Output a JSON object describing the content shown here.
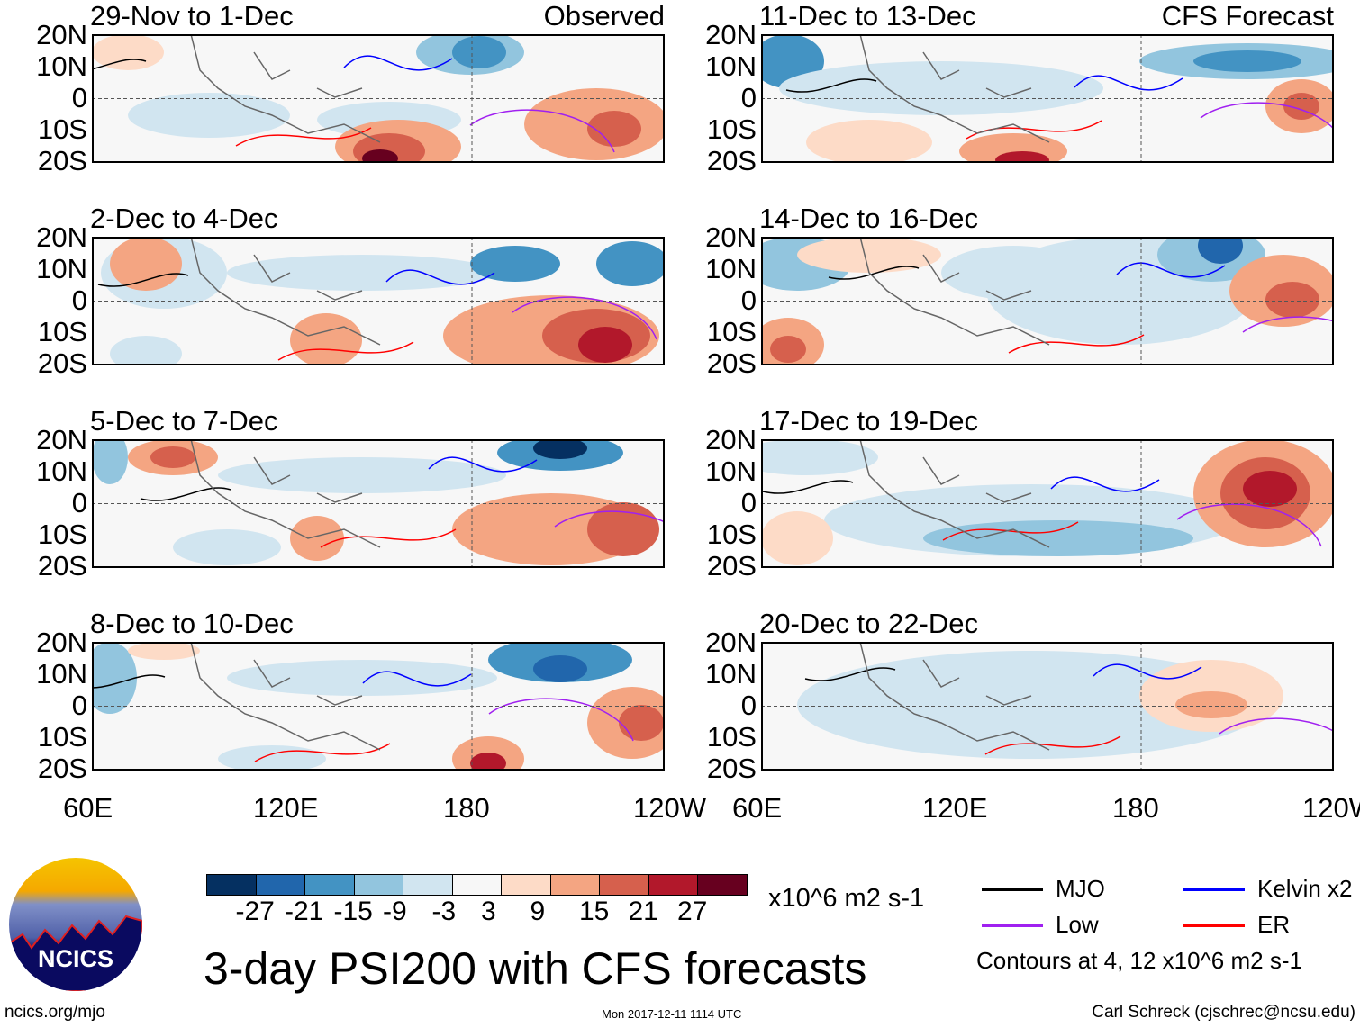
{
  "panels": {
    "left": [
      {
        "title": "29-Nov to 1-Dec",
        "tag": "Observed"
      },
      {
        "title": "2-Dec to 4-Dec"
      },
      {
        "title": "5-Dec to 7-Dec"
      },
      {
        "title": "8-Dec to 10-Dec"
      }
    ],
    "right": [
      {
        "title": "11-Dec to 13-Dec",
        "tag": "CFS Forecast"
      },
      {
        "title": "14-Dec to 16-Dec"
      },
      {
        "title": "17-Dec to 19-Dec"
      },
      {
        "title": "20-Dec to 22-Dec"
      }
    ]
  },
  "lat_labels": [
    "20N",
    "10N",
    "0",
    "10S",
    "20S"
  ],
  "lon_labels": [
    "60E",
    "120E",
    "180",
    "120W"
  ],
  "colorbar": {
    "colors": [
      "#053061",
      "#2166ac",
      "#4393c3",
      "#92c5de",
      "#d1e5f0",
      "#f7f7f7",
      "#fddbc7",
      "#f4a582",
      "#d6604d",
      "#b2182b",
      "#67001f"
    ],
    "labels": [
      "-27",
      "-21",
      "-15",
      "-9",
      "-3",
      "3",
      "9",
      "15",
      "21",
      "27"
    ],
    "units": "x10^6 m2 s-1"
  },
  "legend": {
    "items": [
      {
        "label": "MJO",
        "color": "#000000"
      },
      {
        "label": "Kelvin x2",
        "color": "#0000ff"
      },
      {
        "label": "Low",
        "color": "#a020f0"
      },
      {
        "label": "ER",
        "color": "#ff0000"
      }
    ],
    "note": "Contours at 4, 12 x10^6 m2 s-1"
  },
  "title": "3-day PSI200 with CFS forecasts",
  "logo_text": "NCICS",
  "footer": {
    "url": "ncics.org/mjo",
    "timestamp": "Mon 2017-12-11 1114 UTC",
    "author": "Carl Schreck (cjschrec@ncsu.edu)"
  }
}
